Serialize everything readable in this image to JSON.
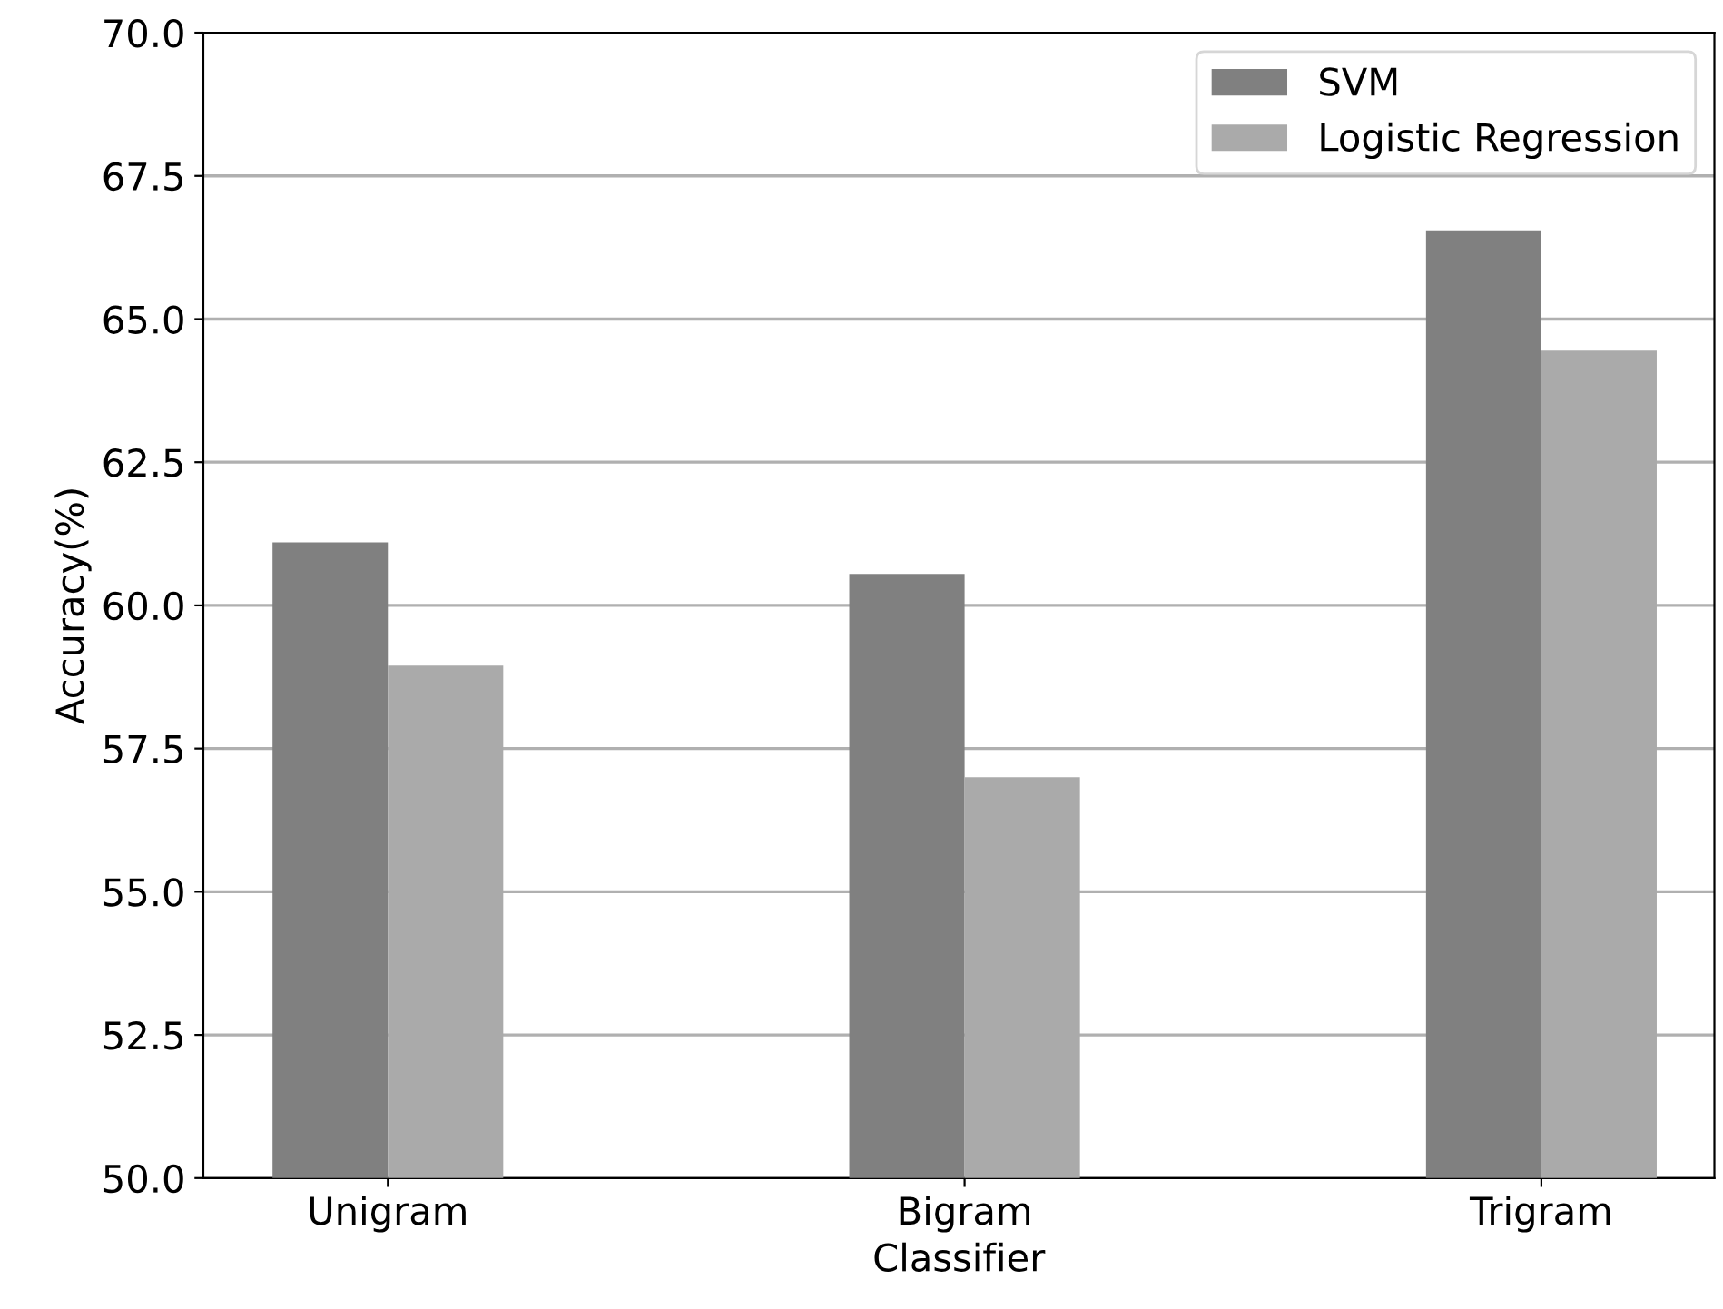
{
  "chart_data": {
    "type": "bar",
    "xlabel": "Classifier",
    "ylabel": "Accuracy(%)",
    "categories": [
      "Unigram",
      "Bigram",
      "Trigram"
    ],
    "series": [
      {
        "name": "SVM",
        "color": "#808080",
        "values": [
          61.1,
          60.55,
          66.55
        ]
      },
      {
        "name": "Logistic Regression",
        "color": "#aaaaaa",
        "values": [
          58.95,
          57.0,
          64.45
        ]
      }
    ],
    "ylim": [
      50,
      70
    ],
    "yticks": [
      {
        "value": 50,
        "label": "50.0"
      },
      {
        "value": 52.5,
        "label": "52.5"
      },
      {
        "value": 55,
        "label": "55.0"
      },
      {
        "value": 57.5,
        "label": "57.5"
      },
      {
        "value": 60,
        "label": "60.0"
      },
      {
        "value": 62.5,
        "label": "62.5"
      },
      {
        "value": 65,
        "label": "65.0"
      },
      {
        "value": 67.5,
        "label": "67.5"
      },
      {
        "value": 70,
        "label": "70.0"
      }
    ],
    "grid": "y",
    "legend": "top right"
  }
}
